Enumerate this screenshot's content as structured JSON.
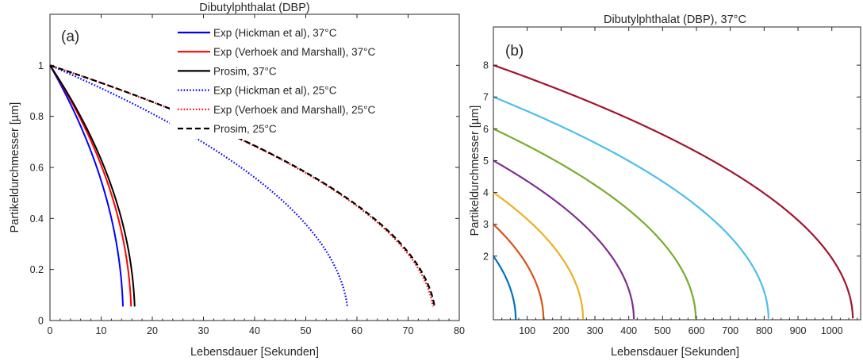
{
  "chart_data": [
    {
      "type": "line",
      "title": "Dibutylphthalat (DBP)",
      "panel_label": "(a)",
      "xlabel": "Lebensdauer [Sekunden]",
      "ylabel": "Partikeldurchmesser [µm]",
      "xlim": [
        0,
        80
      ],
      "ylim": [
        0,
        1.2
      ],
      "xticks": [
        0,
        10,
        20,
        30,
        40,
        50,
        60,
        70,
        80
      ],
      "yticks": [
        0,
        0.2,
        0.4,
        0.6,
        0.8,
        1
      ],
      "grid": false,
      "legend_position": "top-right",
      "series": [
        {
          "name": "Exp (Hickman et al), 37°C",
          "color": "#0000ff",
          "style": "solid",
          "tmax": 14.3
        },
        {
          "name": "Exp (Verhoek and Marshall), 37°C",
          "color": "#ff0000",
          "style": "solid",
          "tmax": 15.9
        },
        {
          "name": "Prosim, 37°C",
          "color": "#000000",
          "style": "solid",
          "tmax": 16.6
        },
        {
          "name": "Exp (Hickman et al), 25°C",
          "color": "#0000ff",
          "style": "dotted",
          "tmax": 58.3
        },
        {
          "name": "Exp (Verhoek and Marshall), 25°C",
          "color": "#ff0000",
          "style": "dotted",
          "tmax": 75.1
        },
        {
          "name": "Prosim, 25°C",
          "color": "#000000",
          "style": "dashed",
          "tmax": 75.4
        }
      ]
    },
    {
      "type": "line",
      "title": "Dibutylphthalat (DBP), 37°C",
      "panel_label": "(b)",
      "xlabel": "Lebensdauer [Sekunden]",
      "ylabel": "Partikeldurchmesser [µm]",
      "xlim": [
        0,
        1085
      ],
      "ylim": [
        0,
        9.2
      ],
      "xticks": [
        100,
        200,
        300,
        400,
        500,
        600,
        700,
        800,
        900,
        1000
      ],
      "yticks": [
        2,
        3,
        4,
        5,
        6,
        7,
        8
      ],
      "grid": false,
      "series": [
        {
          "d0": 2,
          "tmax": 66,
          "color": "#0072bd"
        },
        {
          "d0": 3,
          "tmax": 148,
          "color": "#d95319"
        },
        {
          "d0": 4,
          "tmax": 265,
          "color": "#edb120"
        },
        {
          "d0": 5,
          "tmax": 415,
          "color": "#7e2f8e"
        },
        {
          "d0": 6,
          "tmax": 598,
          "color": "#77ac30"
        },
        {
          "d0": 7,
          "tmax": 813,
          "color": "#4dbeee"
        },
        {
          "d0": 8,
          "tmax": 1062,
          "color": "#a2142f"
        }
      ]
    }
  ]
}
